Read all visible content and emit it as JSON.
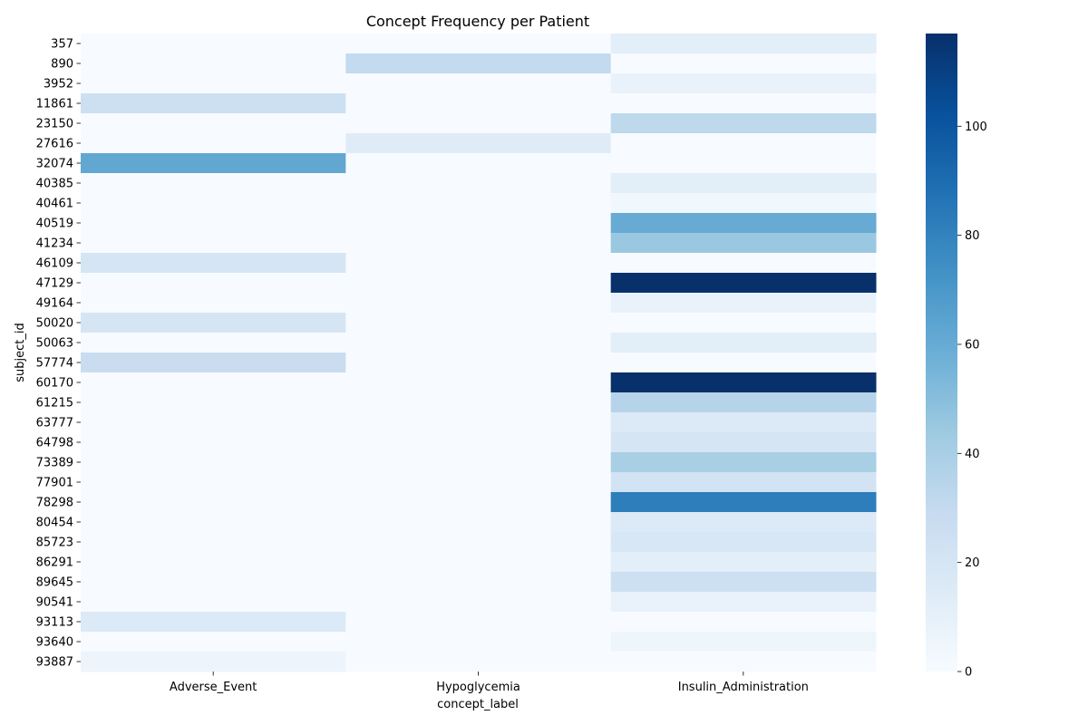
{
  "chart_data": {
    "type": "heatmap",
    "title": "Concept Frequency per Patient",
    "xlabel": "concept_label",
    "ylabel": "subject_id",
    "x_categories": [
      "Adverse_Event",
      "Hypoglycemia",
      "Insulin_Administration"
    ],
    "y_categories": [
      "357",
      "890",
      "3952",
      "11861",
      "23150",
      "27616",
      "32074",
      "40385",
      "40461",
      "40519",
      "41234",
      "46109",
      "47129",
      "49164",
      "50020",
      "50063",
      "57774",
      "60170",
      "61215",
      "63777",
      "64798",
      "73389",
      "77901",
      "78298",
      "80454",
      "85723",
      "86291",
      "89645",
      "90541",
      "93113",
      "93640",
      "93887"
    ],
    "values": [
      [
        0,
        0,
        12
      ],
      [
        0,
        30,
        0
      ],
      [
        0,
        0,
        8
      ],
      [
        25,
        0,
        0
      ],
      [
        0,
        0,
        32
      ],
      [
        0,
        14,
        0
      ],
      [
        62,
        0,
        0
      ],
      [
        0,
        0,
        12
      ],
      [
        0,
        0,
        4
      ],
      [
        0,
        0,
        60
      ],
      [
        0,
        0,
        45
      ],
      [
        20,
        0,
        0
      ],
      [
        0,
        0,
        117
      ],
      [
        0,
        0,
        8
      ],
      [
        20,
        0,
        0
      ],
      [
        0,
        0,
        12
      ],
      [
        27,
        0,
        0
      ],
      [
        0,
        0,
        117
      ],
      [
        0,
        0,
        35
      ],
      [
        0,
        0,
        16
      ],
      [
        0,
        0,
        20
      ],
      [
        0,
        0,
        40
      ],
      [
        0,
        0,
        22
      ],
      [
        0,
        0,
        82
      ],
      [
        0,
        0,
        16
      ],
      [
        0,
        0,
        18
      ],
      [
        0,
        0,
        12
      ],
      [
        0,
        0,
        25
      ],
      [
        0,
        0,
        8
      ],
      [
        16,
        0,
        0
      ],
      [
        0,
        0,
        5
      ],
      [
        6,
        0,
        0
      ]
    ],
    "colorbar": {
      "min": 0,
      "max": 117,
      "ticks": [
        0,
        20,
        40,
        60,
        80,
        100
      ],
      "colormap": "Blues"
    },
    "grid": false,
    "legend": "colorbar-right"
  }
}
